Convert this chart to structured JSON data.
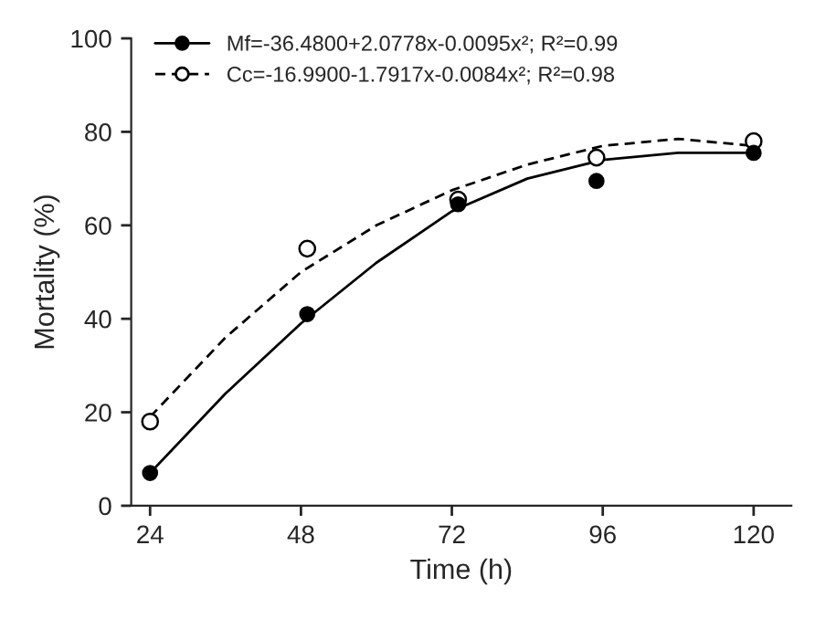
{
  "chart_data": {
    "type": "scatter",
    "xlabel": "Time (h)",
    "ylabel": "Mortality (%)",
    "xlim": [
      21,
      126
    ],
    "xticks": [
      24,
      48,
      72,
      96,
      120
    ],
    "ylim": [
      0,
      100
    ],
    "yticks": [
      0,
      20,
      40,
      60,
      80,
      100
    ],
    "grid": false,
    "legend": "top left",
    "marker": "circle",
    "series": [
      {
        "color": "#000000",
        "x": [
          24,
          49,
          73,
          95,
          120
        ],
        "values": [
          7,
          41,
          64.5,
          69.5,
          75.5
        ]
      },
      {
        "color": "#ffffff",
        "x": [
          24,
          49,
          73,
          95,
          120
        ],
        "values": [
          18,
          55,
          65.5,
          74.5,
          78
        ]
      },
      {
        "type": "line",
        "name": "Mf=-36.4800+2.0778x-0.0095x²; R²=0.99",
        "color": "#000000",
        "line_style": "solid",
        "marker": "none",
        "x": [
          24,
          36,
          48,
          60,
          72,
          84,
          96,
          108,
          120
        ],
        "values": [
          7,
          24,
          39,
          52,
          63,
          70,
          74,
          75.5,
          75.5
        ]
      },
      {
        "type": "line",
        "name": "Cc=-16.9900-1.7917x-0.0084x²; R²=0.98",
        "color": "#000000",
        "line_style": "dashed",
        "marker": "none",
        "x": [
          24,
          36,
          48,
          60,
          72,
          84,
          96,
          108,
          120
        ],
        "values": [
          19,
          36,
          50,
          60,
          67.5,
          73,
          77,
          78.5,
          77
        ]
      }
    ]
  }
}
